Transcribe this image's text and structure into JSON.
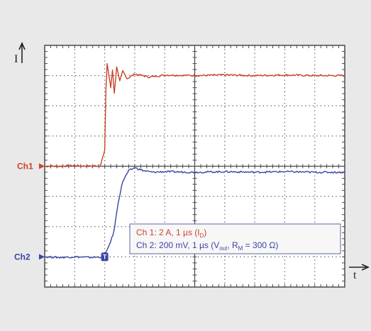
{
  "colors": {
    "background": "#e9e9ea",
    "plot_background": "#ffffff",
    "grid": "#4a4a4a",
    "ch1": "#c9432c",
    "ch2": "#3a45a3",
    "annotation_border": "#5a6aa0",
    "annotation_fill": "#f7f7f7"
  },
  "labels": {
    "y_arrow": "I",
    "x_arrow": "t",
    "ch1_marker": "Ch1",
    "ch2_marker": "Ch2",
    "trigger_marker": "T",
    "legend_line1": "Ch 1:  2 A, 1 µs (I",
    "legend_line1_sub": "D",
    "legend_line1_end": ")",
    "legend_line2": "Ch 2:  200 mV, 1 µs (V",
    "legend_line2_sub1": "out",
    "legend_line2_mid": ", R",
    "legend_line2_sub2": "M",
    "legend_line2_end": " = 300 Ω)"
  },
  "chart_data": {
    "type": "line",
    "xlim": [
      0,
      10
    ],
    "ylim": [
      -4,
      4
    ],
    "x_divisions": 10,
    "y_divisions": 8,
    "grid": true,
    "series": [
      {
        "name": "Ch1",
        "baseline": 0,
        "step_time": 2.0,
        "settled": 3.0,
        "points": [
          [
            0,
            0
          ],
          [
            0.5,
            0
          ],
          [
            1.0,
            0.02
          ],
          [
            1.5,
            0
          ],
          [
            1.85,
            0.02
          ],
          [
            2.0,
            0.5
          ],
          [
            2.04,
            2.5
          ],
          [
            2.08,
            3.4
          ],
          [
            2.14,
            3.0
          ],
          [
            2.2,
            2.6
          ],
          [
            2.26,
            3.2
          ],
          [
            2.32,
            2.4
          ],
          [
            2.4,
            3.3
          ],
          [
            2.5,
            2.8
          ],
          [
            2.6,
            3.15
          ],
          [
            2.75,
            2.9
          ],
          [
            3.0,
            3.05
          ],
          [
            3.5,
            2.95
          ],
          [
            4.0,
            3.02
          ],
          [
            5.0,
            3.0
          ],
          [
            6.0,
            3.02
          ],
          [
            7.0,
            3.0
          ],
          [
            8.0,
            3.02
          ],
          [
            9.0,
            3.0
          ],
          [
            10.0,
            3.0
          ]
        ]
      },
      {
        "name": "Ch2",
        "baseline": -3,
        "step_time": 2.0,
        "settled": -0.2,
        "points": [
          [
            0,
            -3.0
          ],
          [
            0.5,
            -3.02
          ],
          [
            1.0,
            -3.0
          ],
          [
            1.5,
            -3.02
          ],
          [
            1.95,
            -3.0
          ],
          [
            2.1,
            -2.75
          ],
          [
            2.3,
            -2.2
          ],
          [
            2.45,
            -1.2
          ],
          [
            2.6,
            -0.5
          ],
          [
            2.8,
            -0.15
          ],
          [
            3.0,
            -0.05
          ],
          [
            3.3,
            -0.15
          ],
          [
            3.6,
            -0.2
          ],
          [
            4.0,
            -0.18
          ],
          [
            5.0,
            -0.2
          ],
          [
            6.0,
            -0.18
          ],
          [
            7.0,
            -0.2
          ],
          [
            8.0,
            -0.18
          ],
          [
            9.0,
            -0.2
          ],
          [
            10.0,
            -0.2
          ]
        ]
      }
    ]
  }
}
